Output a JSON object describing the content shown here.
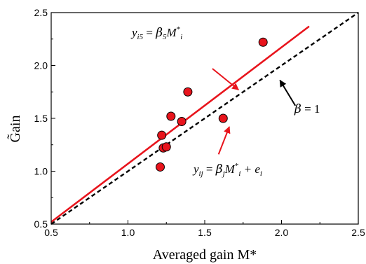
{
  "chart_data": {
    "type": "scatter",
    "xlabel": "Averaged gain M*",
    "ylabel": "G̃ain",
    "xlim": [
      0.5,
      2.5
    ],
    "ylim": [
      0.5,
      2.5
    ],
    "xticks": [
      "0.5",
      "1.0",
      "1.5",
      "2.0",
      "2.5"
    ],
    "yticks": [
      "0.5",
      "1.0",
      "1.5",
      "2.0",
      "2.5"
    ],
    "grid": false,
    "legend": "none",
    "points": {
      "color": "#e8141c",
      "x": [
        1.21,
        1.22,
        1.23,
        1.25,
        1.28,
        1.35,
        1.39,
        1.62,
        1.88
      ],
      "y": [
        1.04,
        1.34,
        1.22,
        1.23,
        1.52,
        1.47,
        1.75,
        1.5,
        2.22
      ]
    },
    "lines": [
      {
        "style": "solid",
        "color": "#e8141c",
        "x": [
          0.5,
          2.18
        ],
        "y": [
          0.52,
          2.37
        ]
      },
      {
        "style": "dashed",
        "color": "#000000",
        "x": [
          0.5,
          2.5
        ],
        "y": [
          0.5,
          2.5
        ]
      }
    ],
    "annotations": [
      {
        "id": "fit",
        "parts": [
          "y",
          "i5",
          " = ",
          "β",
          "5",
          "M",
          "*",
          "i"
        ],
        "arrow_from": [
          1.55,
          1.97
        ],
        "arrow_to": [
          1.72,
          1.77
        ],
        "arrow_color": "#e8141c"
      },
      {
        "id": "model",
        "parts": [
          "y",
          "ij",
          " = ",
          "β",
          "j",
          "M",
          "*",
          "i",
          " + e",
          "i"
        ],
        "arrow_from": [
          1.59,
          1.16
        ],
        "arrow_to": [
          1.66,
          1.42
        ],
        "arrow_color": "#e8141c"
      },
      {
        "id": "identity",
        "parts": [
          "β",
          " = 1"
        ],
        "arrow_from": [
          2.09,
          1.62
        ],
        "arrow_to": [
          1.99,
          1.86
        ],
        "arrow_color": "#000000"
      }
    ]
  }
}
